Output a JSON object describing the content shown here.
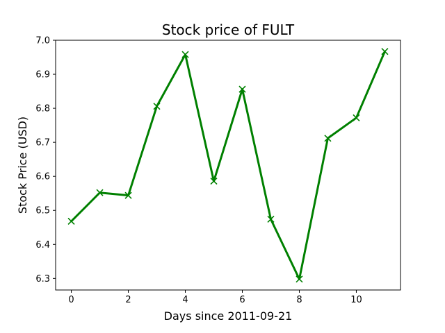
{
  "chart_data": {
    "type": "line",
    "title": "Stock price of FULT",
    "xlabel": "Days since 2011-09-21",
    "ylabel": "Stock Price (USD)",
    "xlim": [
      -0.55,
      11.55
    ],
    "ylim": [
      6.266,
      7.0
    ],
    "xticks": [
      0,
      2,
      4,
      6,
      8,
      10
    ],
    "yticks": [
      6.3,
      6.4,
      6.5,
      6.6,
      6.7,
      6.8,
      6.9,
      7.0
    ],
    "xtick_labels": [
      "0",
      "2",
      "4",
      "6",
      "8",
      "10"
    ],
    "ytick_labels": [
      "6.3",
      "6.4",
      "6.5",
      "6.6",
      "6.7",
      "6.8",
      "6.9",
      "7.0"
    ],
    "grid": false,
    "series": [
      {
        "color": "#008000",
        "marker": "x",
        "x": [
          0,
          1,
          2,
          3,
          4,
          5,
          6,
          7,
          8,
          9,
          10,
          11
        ],
        "y": [
          6.468,
          6.552,
          6.544,
          6.806,
          6.958,
          6.586,
          6.856,
          6.474,
          6.298,
          6.712,
          6.772,
          6.967
        ]
      }
    ]
  }
}
